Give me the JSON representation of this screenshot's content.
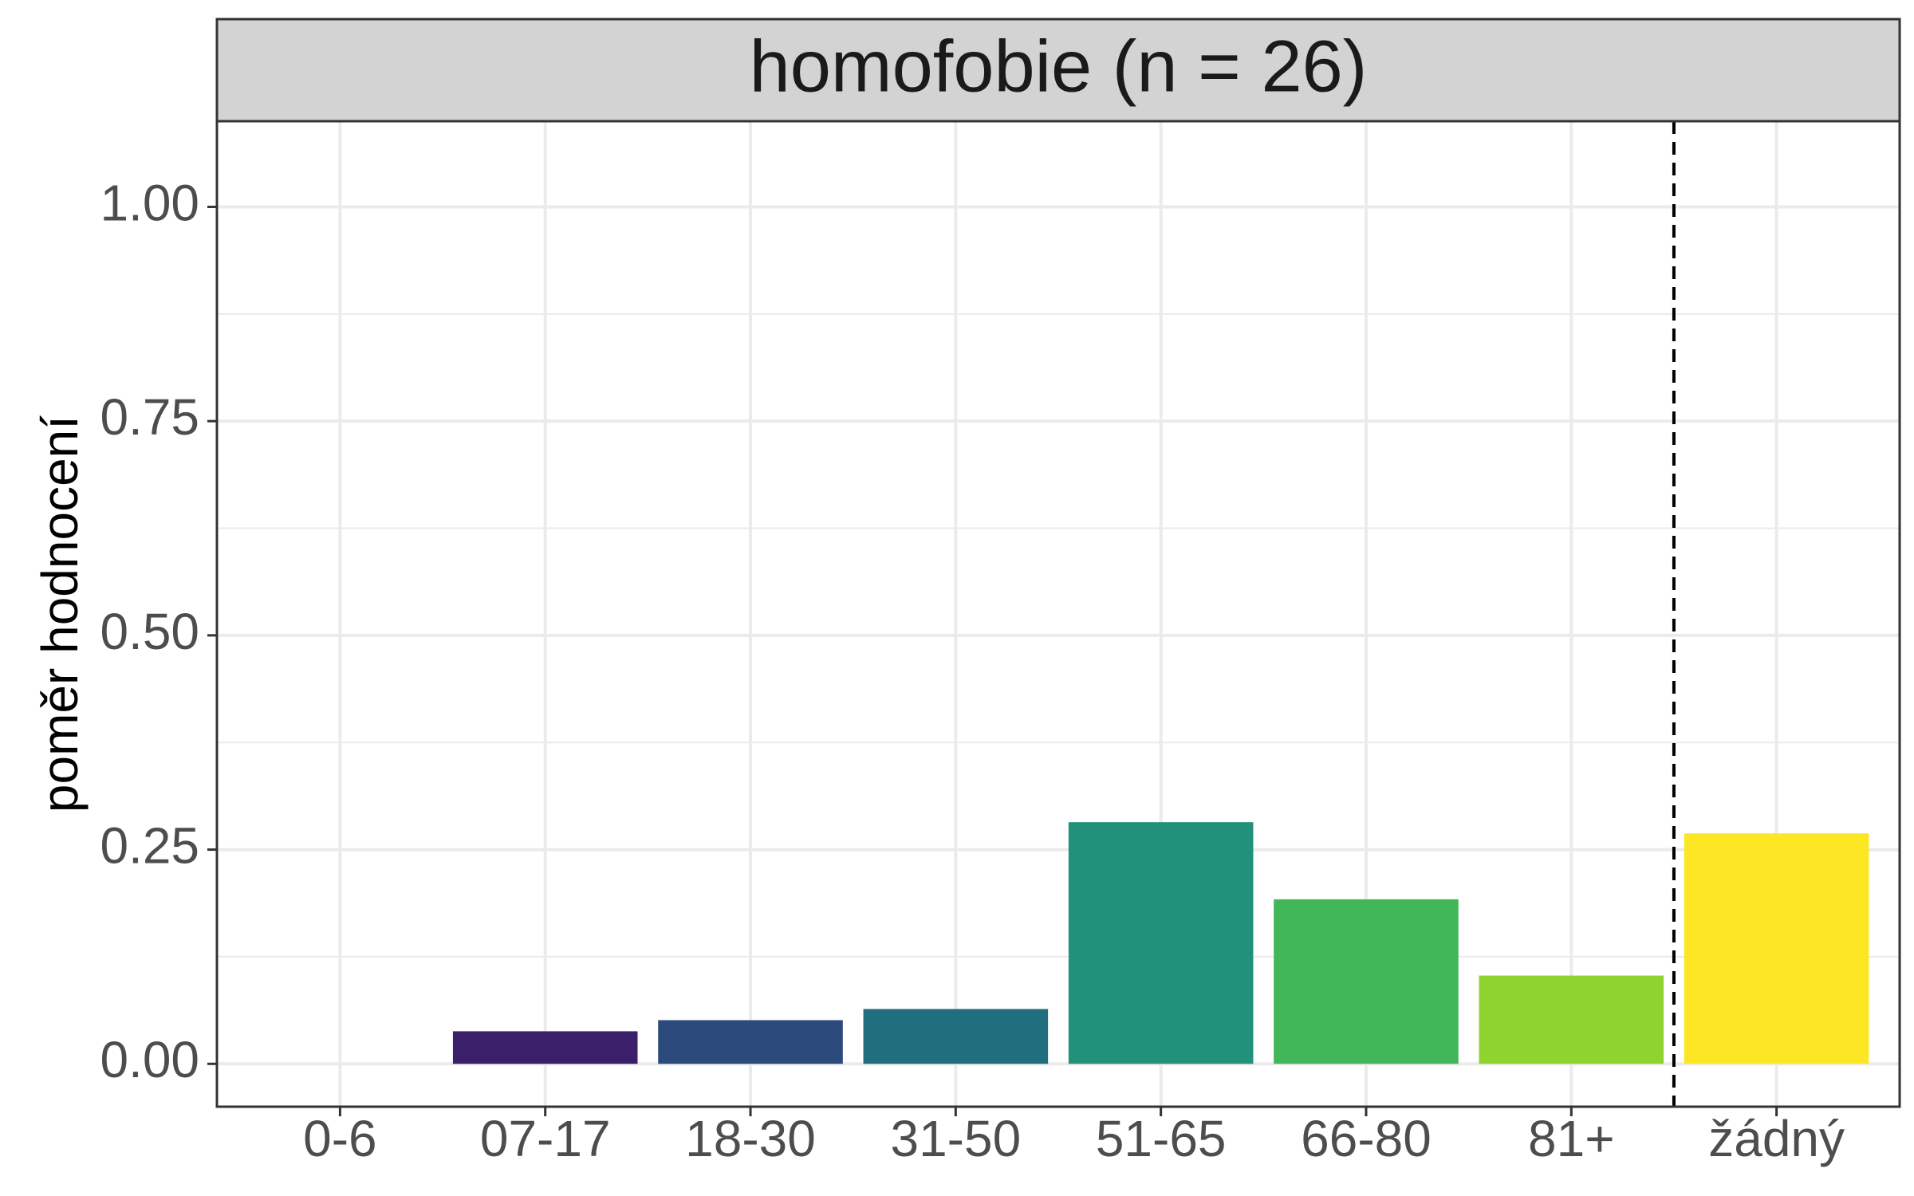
{
  "chart_data": {
    "type": "bar",
    "title": "homofobie (n = 26)",
    "xlabel": "",
    "ylabel": "poměr hodnocení",
    "categories": [
      "0-6",
      "07-17",
      "18-30",
      "31-50",
      "51-65",
      "66-80",
      "81+",
      "žádný"
    ],
    "values": [
      0.0,
      0.038,
      0.051,
      0.064,
      0.282,
      0.192,
      0.103,
      0.269
    ],
    "bar_colors": [
      "#440154",
      "#3B1F6B",
      "#2C4A7C",
      "#216E7E",
      "#21917A",
      "#41B75A",
      "#8FD42E",
      "#FDE725"
    ],
    "ylim": [
      -0.05,
      1.1
    ],
    "yticks": [
      0.0,
      0.25,
      0.5,
      0.75,
      1.0
    ],
    "ytick_labels": [
      "0.00",
      "0.25",
      "0.50",
      "0.75",
      "1.00"
    ],
    "grid": true,
    "legend": "none",
    "divider_after_category": "81+",
    "colors": {
      "strip_background": "#D3D3D3",
      "grid": "#EBEBEB",
      "panel_border": "#333333",
      "divider": "#000000"
    }
  }
}
